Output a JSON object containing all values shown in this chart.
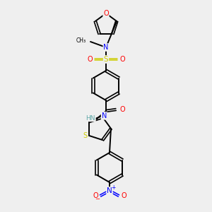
{
  "background_color": "#efefef",
  "atom_colors": {
    "C": "#000000",
    "N": "#0000ff",
    "O": "#ff0000",
    "S": "#cccc00",
    "H": "#5fa8a8"
  },
  "figsize": [
    3.0,
    3.0
  ],
  "dpi": 100
}
